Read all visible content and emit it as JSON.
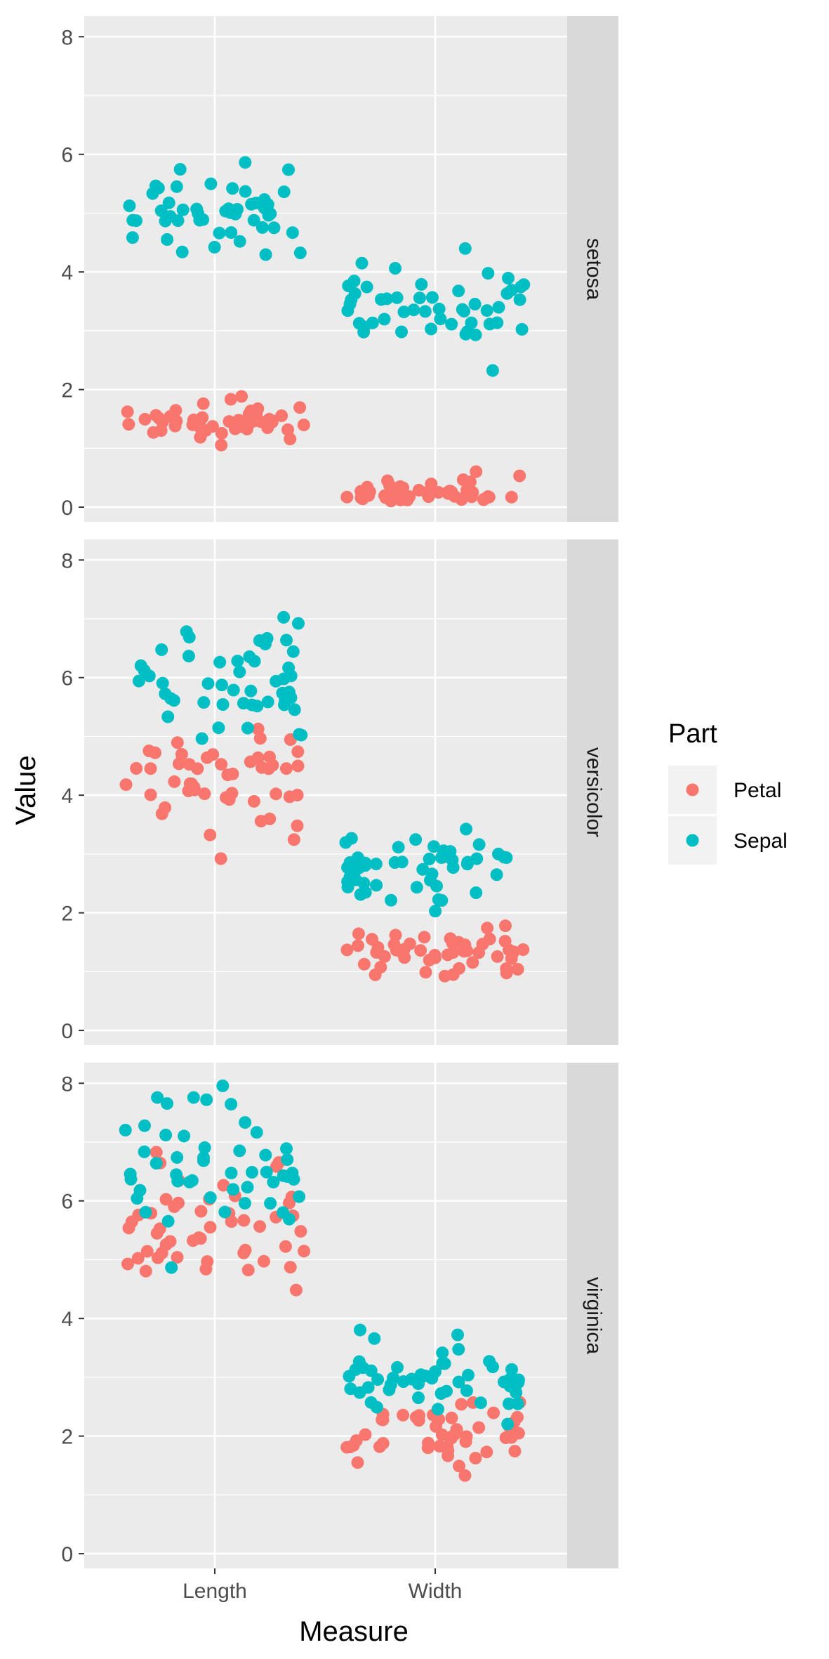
{
  "chart_data": {
    "type": "scatter",
    "xlabel": "Measure",
    "ylabel": "Value",
    "x_categories": [
      "Length",
      "Width"
    ],
    "ylim": [
      -0.25,
      8.35
    ],
    "y_ticks": [
      0,
      2,
      4,
      6,
      8
    ],
    "grid": true,
    "jitter": true,
    "legend": {
      "title": "Part",
      "position": "right",
      "entries": [
        {
          "name": "Petal",
          "color": "#F8766D"
        },
        {
          "name": "Sepal",
          "color": "#00BFC4"
        }
      ]
    },
    "facets": [
      {
        "label": "setosa",
        "series": [
          {
            "name": "Petal",
            "color": "#F8766D",
            "Length": [
              1.4,
              1.4,
              1.3,
              1.5,
              1.4,
              1.7,
              1.4,
              1.5,
              1.4,
              1.5,
              1.5,
              1.6,
              1.4,
              1.1,
              1.2,
              1.5,
              1.3,
              1.4,
              1.7,
              1.5,
              1.7,
              1.5,
              1.0,
              1.7,
              1.9,
              1.6,
              1.6,
              1.5,
              1.4,
              1.6,
              1.6,
              1.5,
              1.5,
              1.4,
              1.5,
              1.2,
              1.3,
              1.4,
              1.3,
              1.5,
              1.3,
              1.3,
              1.3,
              1.6,
              1.9,
              1.4,
              1.6,
              1.4,
              1.5,
              1.4
            ],
            "Width": [
              0.2,
              0.2,
              0.2,
              0.2,
              0.2,
              0.4,
              0.3,
              0.2,
              0.2,
              0.1,
              0.2,
              0.2,
              0.1,
              0.1,
              0.2,
              0.4,
              0.4,
              0.3,
              0.3,
              0.3,
              0.2,
              0.4,
              0.2,
              0.5,
              0.2,
              0.2,
              0.4,
              0.2,
              0.2,
              0.2,
              0.2,
              0.4,
              0.1,
              0.2,
              0.2,
              0.2,
              0.2,
              0.1,
              0.2,
              0.2,
              0.3,
              0.3,
              0.2,
              0.6,
              0.4,
              0.3,
              0.2,
              0.2,
              0.2,
              0.2
            ]
          },
          {
            "name": "Sepal",
            "color": "#00BFC4",
            "Length": [
              5.1,
              4.9,
              4.7,
              4.6,
              5.0,
              5.4,
              4.6,
              5.0,
              4.4,
              4.9,
              5.4,
              4.8,
              4.8,
              4.3,
              5.8,
              5.7,
              5.4,
              5.1,
              5.7,
              5.1,
              5.4,
              5.1,
              4.6,
              5.1,
              4.8,
              5.0,
              5.0,
              5.2,
              5.2,
              4.7,
              4.8,
              5.4,
              5.2,
              5.5,
              4.9,
              5.0,
              5.5,
              4.9,
              4.4,
              5.1,
              5.0,
              4.5,
              4.4,
              5.0,
              5.1,
              4.8,
              5.1,
              4.6,
              5.3,
              5.0
            ],
            "Width": [
              3.5,
              3.0,
              3.2,
              3.1,
              3.6,
              3.9,
              3.4,
              3.4,
              2.9,
              3.1,
              3.7,
              3.4,
              3.0,
              3.0,
              4.0,
              4.4,
              3.9,
              3.5,
              3.8,
              3.8,
              3.4,
              3.7,
              3.6,
              3.3,
              3.4,
              3.0,
              3.4,
              3.5,
              3.4,
              3.2,
              3.1,
              3.4,
              4.1,
              4.2,
              3.1,
              3.2,
              3.5,
              3.6,
              3.0,
              3.4,
              3.5,
              2.3,
              3.2,
              3.5,
              3.8,
              3.0,
              3.8,
              3.2,
              3.7,
              3.3
            ]
          }
        ]
      },
      {
        "label": "versicolor",
        "series": [
          {
            "name": "Petal",
            "color": "#F8766D",
            "Length": [
              4.7,
              4.5,
              4.9,
              4.0,
              4.6,
              4.5,
              4.7,
              3.3,
              4.6,
              3.9,
              3.5,
              4.2,
              4.0,
              4.7,
              3.6,
              4.4,
              4.5,
              4.1,
              4.5,
              3.9,
              4.8,
              4.0,
              4.9,
              4.7,
              4.3,
              4.4,
              4.8,
              5.0,
              4.5,
              3.5,
              3.8,
              3.7,
              3.9,
              5.1,
              4.5,
              4.5,
              4.7,
              4.4,
              4.1,
              4.0,
              4.4,
              4.6,
              4.0,
              3.3,
              4.2,
              4.2,
              4.2,
              4.3,
              3.0,
              4.1
            ],
            "Width": [
              1.4,
              1.5,
              1.5,
              1.3,
              1.5,
              1.3,
              1.6,
              1.0,
              1.3,
              1.4,
              1.0,
              1.5,
              1.0,
              1.4,
              1.3,
              1.4,
              1.5,
              1.0,
              1.5,
              1.1,
              1.8,
              1.3,
              1.5,
              1.2,
              1.3,
              1.4,
              1.4,
              1.7,
              1.5,
              1.0,
              1.1,
              1.0,
              1.2,
              1.6,
              1.5,
              1.6,
              1.5,
              1.3,
              1.3,
              1.3,
              1.2,
              1.4,
              1.2,
              1.0,
              1.3,
              1.2,
              1.3,
              1.3,
              1.1,
              1.3
            ]
          },
          {
            "name": "Sepal",
            "color": "#00BFC4",
            "Length": [
              7.0,
              6.4,
              6.9,
              5.5,
              6.5,
              5.7,
              6.3,
              4.9,
              6.6,
              5.2,
              5.0,
              5.9,
              6.0,
              6.1,
              5.6,
              6.7,
              5.6,
              5.8,
              6.2,
              5.6,
              5.9,
              6.1,
              6.3,
              6.1,
              6.4,
              6.6,
              6.8,
              6.7,
              6.0,
              5.7,
              5.5,
              5.5,
              5.8,
              6.0,
              5.4,
              6.0,
              6.7,
              6.3,
              5.6,
              5.5,
              5.5,
              6.1,
              5.8,
              5.0,
              5.6,
              5.7,
              5.7,
              6.2,
              5.1,
              5.7
            ],
            "Width": [
              3.2,
              3.2,
              3.1,
              2.3,
              2.8,
              2.8,
              3.3,
              2.4,
              2.9,
              2.7,
              2.0,
              3.0,
              2.2,
              2.9,
              2.9,
              3.1,
              3.0,
              2.7,
              2.2,
              2.5,
              3.2,
              2.8,
              2.5,
              2.8,
              2.9,
              3.0,
              2.8,
              3.0,
              2.9,
              2.6,
              2.4,
              2.4,
              2.7,
              2.7,
              3.0,
              3.4,
              3.1,
              2.3,
              3.0,
              2.5,
              2.6,
              3.0,
              2.6,
              2.3,
              2.7,
              3.0,
              2.9,
              2.9,
              2.5,
              2.8
            ]
          }
        ]
      },
      {
        "label": "virginica",
        "series": [
          {
            "name": "Petal",
            "color": "#F8766D",
            "Length": [
              6.0,
              5.1,
              5.9,
              5.6,
              5.8,
              6.6,
              4.5,
              6.3,
              5.8,
              6.1,
              5.1,
              5.3,
              5.5,
              5.0,
              5.1,
              5.3,
              5.5,
              6.7,
              6.9,
              5.0,
              5.7,
              4.9,
              6.7,
              4.9,
              5.7,
              6.0,
              4.8,
              4.9,
              5.6,
              5.8,
              6.1,
              6.4,
              5.6,
              5.1,
              5.6,
              6.1,
              5.6,
              5.5,
              4.8,
              5.4,
              5.6,
              5.1,
              5.1,
              5.9,
              5.7,
              5.2,
              5.0,
              5.2,
              5.4,
              5.1
            ],
            "Width": [
              2.5,
              1.9,
              2.1,
              1.8,
              2.2,
              2.1,
              1.7,
              1.8,
              1.8,
              2.5,
              2.0,
              1.9,
              2.1,
              2.0,
              2.4,
              2.3,
              1.8,
              2.2,
              2.3,
              1.5,
              2.3,
              2.0,
              2.0,
              1.8,
              2.1,
              1.8,
              1.8,
              1.8,
              2.1,
              1.6,
              1.9,
              2.0,
              2.2,
              1.5,
              1.4,
              2.3,
              2.4,
              1.8,
              1.8,
              2.1,
              2.4,
              2.3,
              1.9,
              2.3,
              2.5,
              2.3,
              1.9,
              2.0,
              2.3,
              1.8
            ]
          },
          {
            "name": "Sepal",
            "color": "#00BFC4",
            "Length": [
              6.3,
              5.8,
              7.1,
              6.3,
              6.5,
              7.6,
              4.9,
              7.3,
              6.7,
              7.2,
              6.5,
              6.4,
              6.8,
              5.7,
              5.8,
              6.4,
              6.5,
              7.7,
              7.7,
              6.0,
              6.9,
              5.6,
              7.7,
              6.3,
              6.7,
              7.2,
              6.2,
              6.1,
              6.4,
              7.2,
              7.4,
              7.9,
              6.4,
              6.3,
              6.1,
              7.7,
              6.3,
              6.4,
              6.0,
              6.9,
              6.7,
              6.9,
              5.8,
              6.8,
              6.7,
              6.7,
              6.3,
              6.5,
              6.2,
              5.9
            ],
            "Width": [
              3.3,
              2.7,
              3.0,
              2.9,
              3.0,
              3.0,
              2.5,
              2.9,
              2.5,
              3.6,
              3.2,
              2.7,
              3.0,
              2.5,
              2.8,
              3.2,
              3.0,
              3.8,
              2.6,
              2.2,
              3.2,
              2.8,
              2.8,
              2.7,
              3.3,
              3.2,
              2.8,
              3.0,
              2.8,
              3.0,
              2.8,
              3.8,
              2.8,
              2.8,
              2.6,
              3.0,
              3.4,
              3.1,
              3.0,
              3.1,
              3.1,
              3.1,
              2.7,
              3.2,
              3.3,
              3.0,
              2.5,
              3.0,
              3.4,
              3.0
            ]
          }
        ]
      }
    ]
  }
}
